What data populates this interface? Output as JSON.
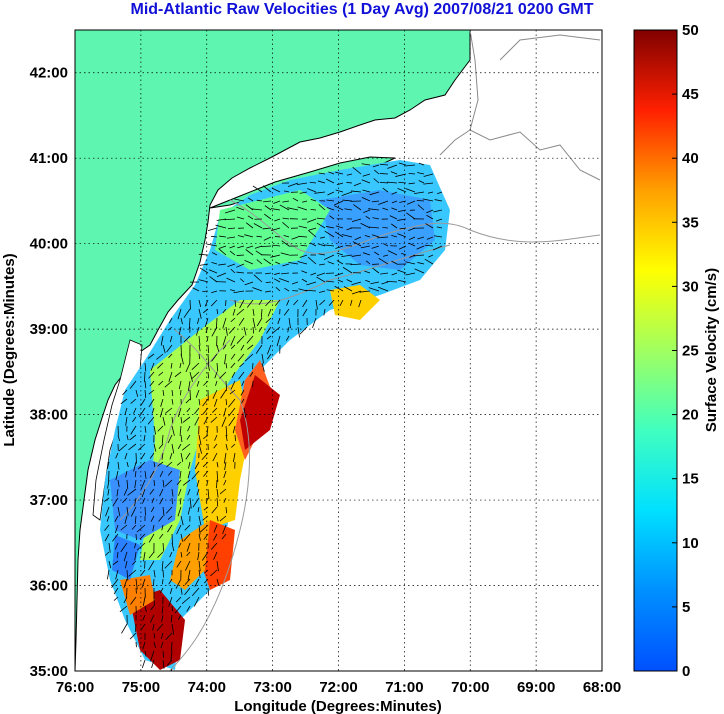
{
  "title": "Mid-Atlantic Raw Velocities (1 Day Avg) 2007/08/21 0200 GMT",
  "map": {
    "xlabel": "Longitude (Degrees:Minutes)",
    "ylabel": "Latitude (Degrees:Minutes)",
    "lon_range": [
      -76,
      -68
    ],
    "lat_range": [
      35,
      42.5
    ],
    "x_ticks": [
      "76:00",
      "75:00",
      "74:00",
      "73:00",
      "72:00",
      "71:00",
      "70:00",
      "69:00",
      "68:00"
    ],
    "y_ticks": [
      "35:00",
      "36:00",
      "37:00",
      "38:00",
      "39:00",
      "40:00",
      "41:00",
      "42:00"
    ],
    "grid": "dotted",
    "land_color": "#5ef5b0",
    "coast_color": "#000000",
    "bathymetry_color": "#9a9a9a"
  },
  "colorbar": {
    "label": "Surface Velocity (cm/s)",
    "ticks": [
      "0",
      "5",
      "10",
      "15",
      "20",
      "25",
      "30",
      "35",
      "40",
      "45",
      "50"
    ],
    "range": [
      0,
      50
    ],
    "colormap": "jet"
  }
}
